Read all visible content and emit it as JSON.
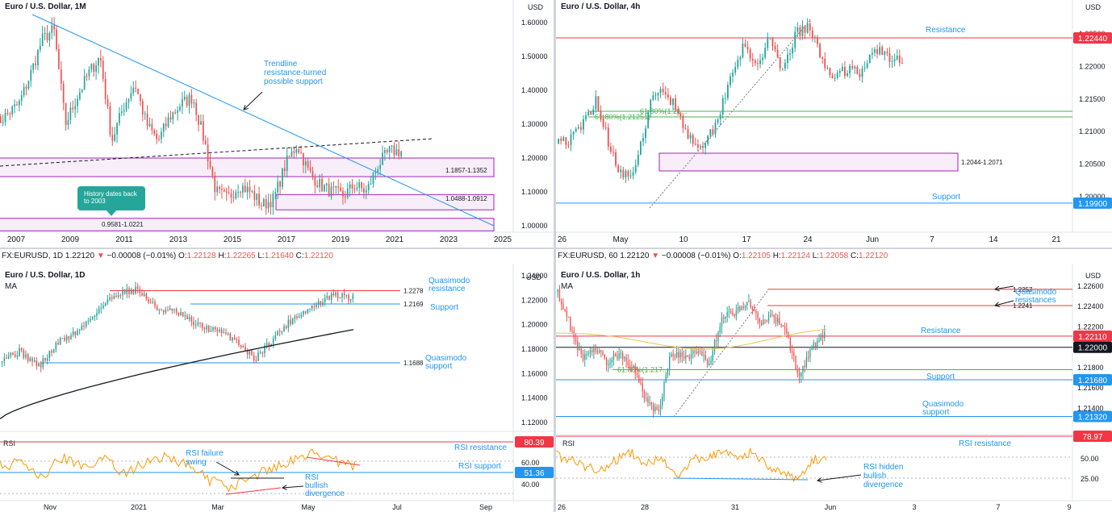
{
  "colors": {
    "up": "#26a69a",
    "down": "#ef5350",
    "blue": "#2196f3",
    "red": "#f23645",
    "green": "#4caf50",
    "purple": "#9c27b0",
    "orange": "#ff9800",
    "grey": "#787b86"
  },
  "panels": {
    "tl": {
      "title": "Euro / U.S. Dollar, 1M",
      "currency": "USD",
      "y_ticks": [
        "1.60000",
        "1.50000",
        "1.40000",
        "1.30000",
        "1.20000",
        "1.10000",
        "1.00000"
      ],
      "x_ticks": [
        "2007",
        "2009",
        "2011",
        "2013",
        "2015",
        "2017",
        "2019",
        "2021",
        "2023",
        "2025"
      ],
      "annotations": {
        "trendline_note": [
          "Trendline",
          "resistance-turned",
          "possible support"
        ],
        "history_note": [
          "History dates back",
          "to 2003"
        ],
        "zone1": "1.1857-1.1352",
        "zone2": "1.0488-1.0912",
        "zone3": "0.9581-1.0221"
      }
    },
    "tr": {
      "title": "Euro / U.S. Dollar, 4h",
      "currency": "USD",
      "y_ticks": [
        "1.22500",
        "1.22000",
        "1.21500",
        "1.21000",
        "1.20500",
        "1.20000"
      ],
      "x_ticks": [
        "26",
        "May",
        "10",
        "17",
        "24",
        "Jun",
        "7",
        "14",
        "21"
      ],
      "resistance_label": "Resistance",
      "resistance_price": "1.22440",
      "support_label": "Support",
      "support_price": "1.19900",
      "fib_label": "61.80%(1.21251)",
      "fib_label2": "61.80%(1.21...",
      "zone": "1.2044-1.2071"
    },
    "bl": {
      "infobar": {
        "symbol": "FX:EURUSD, 1D",
        "last": "1.22120",
        "change": "−0.00008 (−0.01%)",
        "o": "O:",
        "ov": "1.22128",
        "h": "H:",
        "hv": "1.22265",
        "l": "L:",
        "lv": "1.21640",
        "c": "C:",
        "cv": "1.22120"
      },
      "title": "Euro / U.S. Dollar, 1D",
      "ma": "MA",
      "currency": "USD",
      "y_ticks": [
        "1.24000",
        "1.22000",
        "1.20000",
        "1.18000",
        "1.16000",
        "1.14000",
        "1.12000"
      ],
      "x_ticks": [
        "Nov",
        "2021",
        "Mar",
        "May",
        "Jul",
        "Sep"
      ],
      "qm_res_label": [
        "Quasimodo",
        "resistance"
      ],
      "qm_res_val": "1.2278",
      "support_label": "Support",
      "support_val": "1.2169",
      "qm_sup_label": [
        "Quasimodo",
        "support"
      ],
      "qm_sup_val": "1.1688",
      "rsi": {
        "label": "RSI",
        "resistance_label": "RSI resistance",
        "resistance_val": "80.39",
        "support_label": "RSI support",
        "support_val": "51.36",
        "ticks": [
          "60.00",
          "40.00"
        ],
        "failure_note": [
          "RSI failure",
          "swing"
        ],
        "bull_note": [
          "RSI",
          "bullish",
          "divergence"
        ]
      }
    },
    "br": {
      "infobar": {
        "symbol": "FX:EURUSD, 60",
        "last": "1.22120",
        "change": "−0.00008 (−0.01%)",
        "o": "O:",
        "ov": "1.22105",
        "h": "H:",
        "hv": "1.22124",
        "l": "L:",
        "lv": "1.22058",
        "c": "C:",
        "cv": "1.22120"
      },
      "title": "Euro / U.S. Dollar, 1h",
      "ma": "MA",
      "currency": "USD",
      "y_ticks": [
        "1.22600",
        "1.22400",
        "1.22200",
        "1.21800",
        "1.21600",
        "1.21400"
      ],
      "x_ticks": [
        "26",
        "28",
        "31",
        "Jun",
        "3",
        "7",
        "9"
      ],
      "qm_label": [
        "Quasimodo",
        "resistances"
      ],
      "qm1": "1.2257",
      "qm2": "1.2241",
      "resistance_label": "Resistance",
      "resistance_price": "1.22110",
      "level_price": "1.22000",
      "support_label": "Support",
      "support_price": "1.21680",
      "fib_label": "61.80%(1.217...",
      "qm_sup_label": [
        "Quasimodo",
        "support"
      ],
      "qm_sup_price": "1.21320",
      "rsi": {
        "label": "RSI",
        "resistance_label": "RSI resistance",
        "resistance_val": "78.97",
        "ticks": [
          "50.00",
          "25.00"
        ],
        "note": [
          "RSI hidden",
          "bullish",
          "divergence"
        ]
      }
    }
  },
  "chart_data": [
    {
      "type": "line",
      "title": "Euro / U.S. Dollar, 1M",
      "x": [
        2007,
        2009,
        2011,
        2013,
        2015,
        2017,
        2019,
        2021
      ],
      "series": [
        {
          "values": [
            1.32,
            1.4,
            1.33,
            1.3,
            1.09,
            1.07,
            1.12,
            1.22
          ]
        }
      ],
      "ylim": [
        0.98,
        1.62
      ]
    },
    {
      "type": "line",
      "title": "Euro / U.S. Dollar, 4h",
      "x": [
        "26",
        "May",
        "10",
        "17",
        "24",
        "Jun"
      ],
      "series": [
        {
          "values": [
            1.209,
            1.203,
            1.216,
            1.207,
            1.226,
            1.221
          ]
        }
      ],
      "ylim": [
        1.197,
        1.227
      ]
    },
    {
      "type": "line",
      "title": "Euro / U.S. Dollar, 1D",
      "x": [
        "Nov",
        "2021",
        "Mar",
        "May",
        "Jul"
      ],
      "series": [
        {
          "values": [
            1.167,
            1.229,
            1.171,
            1.212,
            1.221
          ]
        }
      ],
      "ylim": [
        1.12,
        1.24
      ]
    },
    {
      "type": "line",
      "title": "Euro / U.S. Dollar, 1h",
      "x": [
        "26",
        "28",
        "31",
        "Jun",
        "3"
      ],
      "series": [
        {
          "values": [
            1.225,
            1.219,
            1.213,
            1.224,
            1.2212
          ]
        }
      ],
      "ylim": [
        1.212,
        1.227
      ]
    }
  ]
}
